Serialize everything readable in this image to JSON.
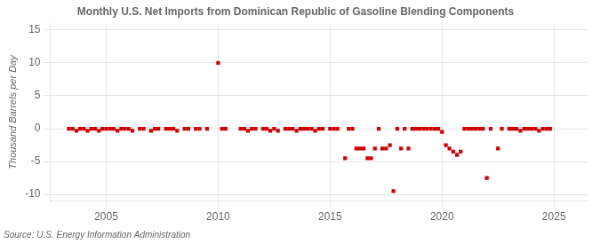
{
  "chart_data": {
    "type": "scatter",
    "title": "Monthly U.S. Net Imports from Dominican Republic of Gasoline Blending Components",
    "ylabel": "Thousand Barrels per Day",
    "annotations": [
      "Source: U.S. Energy Information Administration"
    ],
    "color": "#cc0000",
    "marker": "square",
    "grid": true,
    "xlim": [
      2002.5,
      2026.5
    ],
    "xticks": [
      2005,
      2010,
      2015,
      2020,
      2025
    ],
    "ylim": [
      -11,
      16
    ],
    "yticks": [
      -10,
      -5,
      0,
      5,
      10,
      15
    ],
    "x": [
      2003.33,
      2003.5,
      2003.67,
      2003.83,
      2004.0,
      2004.17,
      2004.33,
      2004.5,
      2004.67,
      2004.83,
      2005.0,
      2005.17,
      2005.33,
      2005.5,
      2005.67,
      2005.83,
      2006.0,
      2006.17,
      2006.5,
      2006.67,
      2007.0,
      2007.17,
      2007.33,
      2007.67,
      2007.83,
      2008.0,
      2008.17,
      2008.5,
      2008.67,
      2009.0,
      2009.17,
      2009.5,
      2010.0,
      2010.17,
      2010.33,
      2011.0,
      2011.17,
      2011.33,
      2011.5,
      2011.67,
      2012.0,
      2012.17,
      2012.33,
      2012.5,
      2012.67,
      2013.0,
      2013.17,
      2013.33,
      2013.5,
      2013.67,
      2013.83,
      2014.0,
      2014.17,
      2014.33,
      2014.5,
      2014.67,
      2015.0,
      2015.17,
      2015.33,
      2015.67,
      2015.83,
      2016.0,
      2016.17,
      2016.33,
      2016.5,
      2016.67,
      2016.83,
      2017.0,
      2017.17,
      2017.33,
      2017.5,
      2017.67,
      2017.83,
      2018.0,
      2018.17,
      2018.33,
      2018.5,
      2018.67,
      2018.83,
      2019.0,
      2019.17,
      2019.33,
      2019.5,
      2019.67,
      2019.83,
      2020.0,
      2020.17,
      2020.33,
      2020.5,
      2020.67,
      2020.83,
      2021.0,
      2021.17,
      2021.33,
      2021.5,
      2021.67,
      2021.83,
      2022.0,
      2022.17,
      2022.5,
      2022.67,
      2023.0,
      2023.17,
      2023.33,
      2023.5,
      2023.67,
      2023.83,
      2024.0,
      2024.17,
      2024.33,
      2024.5,
      2024.67,
      2024.83
    ],
    "values": [
      0,
      0,
      -0.3,
      0,
      0,
      -0.3,
      0,
      0,
      -0.3,
      0,
      0,
      0,
      0,
      -0.3,
      0,
      0,
      0,
      -0.3,
      0,
      0,
      -0.3,
      0,
      0,
      0,
      0,
      0,
      -0.3,
      0,
      0,
      0,
      0,
      0,
      10,
      0,
      0,
      0,
      0,
      -0.3,
      0,
      0,
      0,
      0,
      -0.3,
      0,
      -0.3,
      0,
      0,
      0,
      -0.3,
      0,
      0,
      0,
      0,
      -0.3,
      0,
      0,
      0,
      0,
      0,
      -4.5,
      0,
      0,
      -3.0,
      -3.0,
      -3.0,
      -4.5,
      -4.5,
      -3.0,
      0,
      -3.0,
      -3.0,
      -2.5,
      -9.5,
      0,
      -3.0,
      0,
      -3.0,
      0,
      0,
      0,
      0,
      0,
      0,
      0,
      0,
      -0.5,
      -2.5,
      -3.0,
      -3.5,
      -4.0,
      -3.5,
      0,
      0,
      0,
      0,
      0,
      0,
      -7.5,
      0,
      -3.0,
      0,
      0,
      0,
      0,
      -0.3,
      0,
      0,
      0,
      0,
      -0.3,
      0,
      0,
      0
    ]
  }
}
